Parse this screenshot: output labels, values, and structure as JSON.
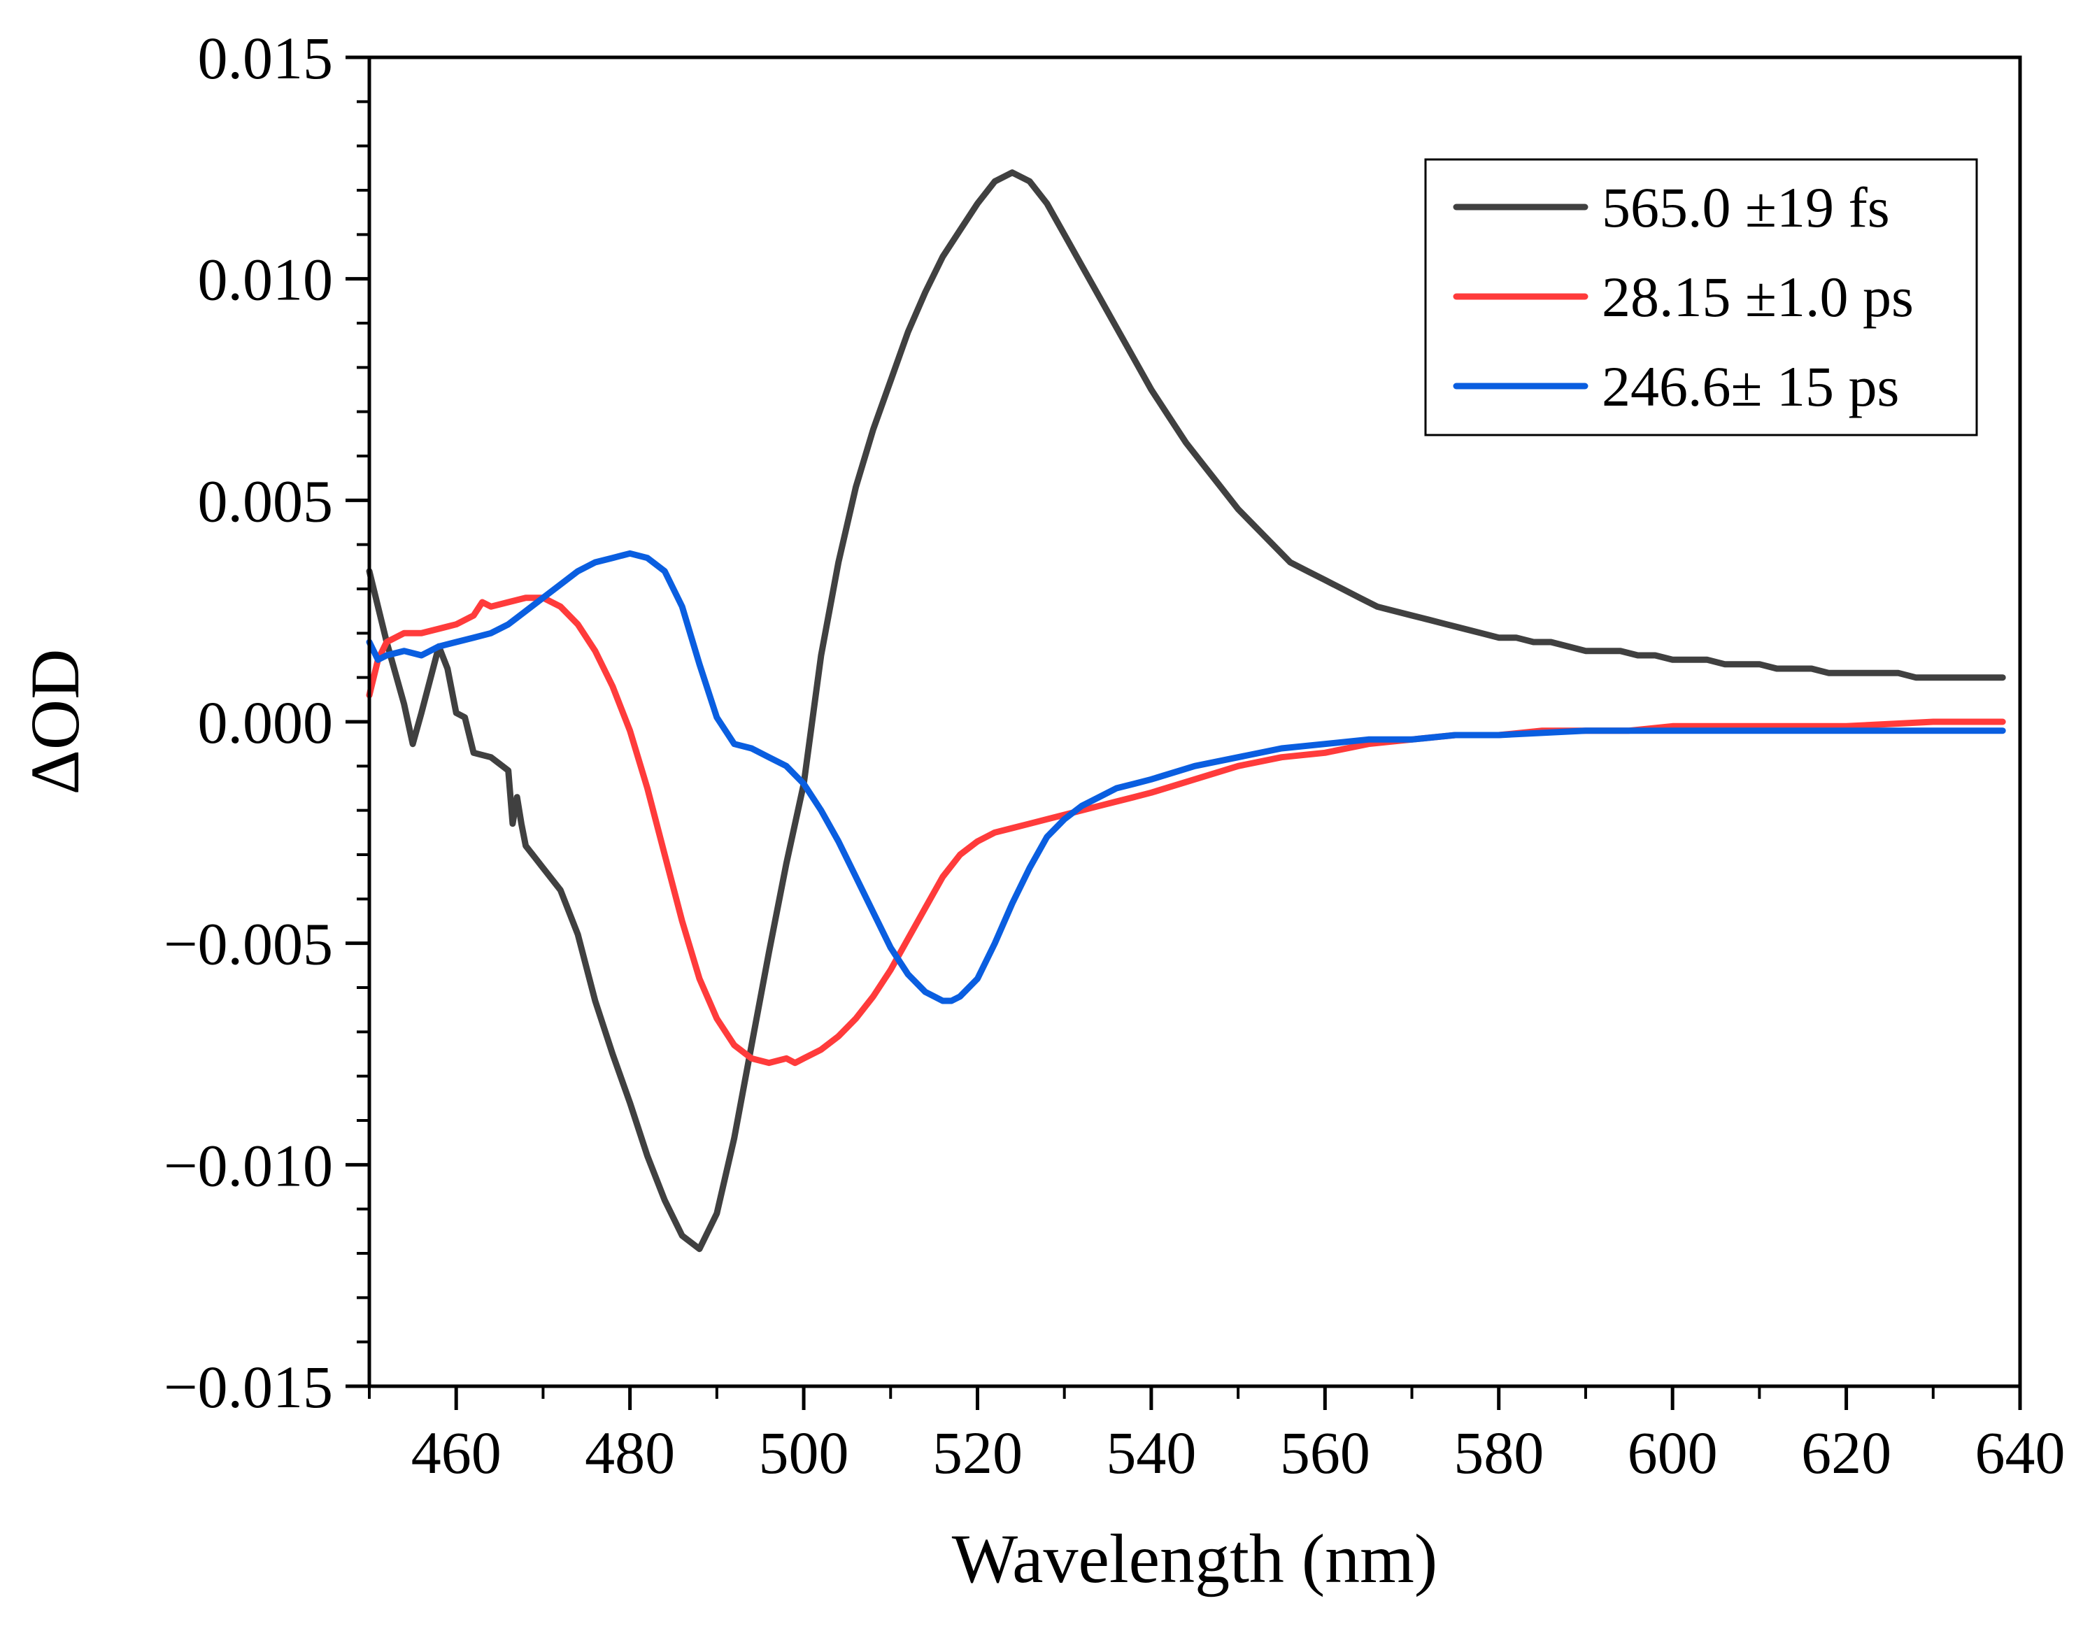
{
  "chart_data": {
    "type": "line",
    "xlabel": "Wavelength (nm)",
    "ylabel": "ΔOD",
    "xlim": [
      450,
      640
    ],
    "ylim": [
      -0.015,
      0.015
    ],
    "x_ticks": [
      460,
      480,
      500,
      520,
      540,
      560,
      580,
      600,
      620,
      640
    ],
    "x_tick_labels": [
      "460",
      "480",
      "500",
      "520",
      "540",
      "560",
      "580",
      "600",
      "620",
      "640"
    ],
    "y_ticks": [
      -0.015,
      -0.01,
      -0.005,
      0.0,
      0.005,
      0.01,
      0.015
    ],
    "y_tick_labels": [
      "−0.015",
      "−0.010",
      "−0.005",
      "0.000",
      "0.005",
      "0.010",
      "0.015"
    ],
    "grid": false,
    "legend_position": "top-right",
    "series": [
      {
        "name": "565.0 ±19 fs",
        "color": "#404040",
        "x": [
          450,
          452,
          454,
          455,
          456,
          458,
          459,
          460,
          461,
          462,
          464,
          466,
          466.5,
          467,
          467.5,
          468,
          470,
          472,
          474,
          476,
          478,
          480,
          482,
          484,
          486,
          488,
          490,
          492,
          494,
          496,
          498,
          500,
          502,
          504,
          506,
          508,
          510,
          512,
          514,
          516,
          518,
          520,
          522,
          524,
          526,
          528,
          530,
          532,
          534,
          536,
          538,
          540,
          542,
          544,
          546,
          548,
          550,
          552,
          554,
          556,
          558,
          560,
          562,
          564,
          566,
          568,
          570,
          572,
          574,
          576,
          578,
          580,
          582,
          584,
          586,
          588,
          590,
          592,
          594,
          596,
          598,
          600,
          602,
          604,
          606,
          608,
          610,
          612,
          614,
          616,
          618,
          620,
          622,
          624,
          626,
          628,
          630,
          632,
          634,
          636,
          638
        ],
        "y": [
          0.0034,
          0.0018,
          0.0004,
          -0.0005,
          0.0002,
          0.0017,
          0.0012,
          0.0002,
          0.0001,
          -0.0007,
          -0.0008,
          -0.0011,
          -0.0023,
          -0.0017,
          -0.0023,
          -0.0028,
          -0.0033,
          -0.0038,
          -0.0048,
          -0.0063,
          -0.0075,
          -0.0086,
          -0.0098,
          -0.0108,
          -0.0116,
          -0.0119,
          -0.0111,
          -0.0094,
          -0.0073,
          -0.0052,
          -0.0032,
          -0.0014,
          0.0015,
          0.0036,
          0.0053,
          0.0066,
          0.0077,
          0.0088,
          0.0097,
          0.0105,
          0.0111,
          0.0117,
          0.0122,
          0.0124,
          0.0122,
          0.0117,
          0.011,
          0.0103,
          0.0096,
          0.0089,
          0.0082,
          0.0075,
          0.0069,
          0.0063,
          0.0058,
          0.0053,
          0.0048,
          0.0044,
          0.004,
          0.0036,
          0.0034,
          0.0032,
          0.003,
          0.0028,
          0.0026,
          0.0025,
          0.0024,
          0.0023,
          0.0022,
          0.0021,
          0.002,
          0.0019,
          0.0019,
          0.0018,
          0.0018,
          0.0017,
          0.0016,
          0.0016,
          0.0016,
          0.0015,
          0.0015,
          0.0014,
          0.0014,
          0.0014,
          0.0013,
          0.0013,
          0.0013,
          0.0012,
          0.0012,
          0.0012,
          0.0011,
          0.0011,
          0.0011,
          0.0011,
          0.0011,
          0.001,
          0.001,
          0.001,
          0.001,
          0.001,
          0.001
        ]
      },
      {
        "name": "28.15 ±1.0 ps",
        "color": "#ff3b3b",
        "x": [
          450,
          451,
          452,
          454,
          456,
          458,
          460,
          462,
          463,
          464,
          466,
          468,
          470,
          472,
          474,
          476,
          478,
          480,
          482,
          484,
          486,
          488,
          490,
          492,
          494,
          496,
          498,
          499,
          500,
          502,
          504,
          506,
          508,
          510,
          512,
          514,
          516,
          518,
          520,
          522,
          524,
          526,
          528,
          530,
          532,
          534,
          536,
          538,
          540,
          545,
          550,
          555,
          560,
          565,
          570,
          575,
          580,
          585,
          590,
          595,
          600,
          610,
          620,
          630,
          638
        ],
        "y": [
          0.0006,
          0.0014,
          0.0018,
          0.002,
          0.002,
          0.0021,
          0.0022,
          0.0024,
          0.0027,
          0.0026,
          0.0027,
          0.0028,
          0.0028,
          0.0026,
          0.0022,
          0.0016,
          0.0008,
          -0.0002,
          -0.0015,
          -0.003,
          -0.0045,
          -0.0058,
          -0.0067,
          -0.0073,
          -0.0076,
          -0.0077,
          -0.0076,
          -0.0077,
          -0.0076,
          -0.0074,
          -0.0071,
          -0.0067,
          -0.0062,
          -0.0056,
          -0.0049,
          -0.0042,
          -0.0035,
          -0.003,
          -0.0027,
          -0.0025,
          -0.0024,
          -0.0023,
          -0.0022,
          -0.0021,
          -0.002,
          -0.0019,
          -0.0018,
          -0.0017,
          -0.0016,
          -0.0013,
          -0.001,
          -0.0008,
          -0.0007,
          -0.0005,
          -0.0004,
          -0.0003,
          -0.0003,
          -0.0002,
          -0.0002,
          -0.0002,
          -0.0001,
          -0.0001,
          -0.0001,
          0.0,
          0.0
        ]
      },
      {
        "name": "246.6± 15 ps",
        "color": "#0a5ee0",
        "x": [
          450,
          451,
          452,
          454,
          456,
          458,
          460,
          462,
          464,
          466,
          468,
          470,
          472,
          474,
          476,
          478,
          480,
          482,
          484,
          486,
          488,
          490,
          492,
          494,
          496,
          498,
          500,
          502,
          504,
          506,
          508,
          510,
          512,
          514,
          516,
          517,
          518,
          520,
          522,
          524,
          526,
          528,
          530,
          532,
          534,
          536,
          538,
          540,
          545,
          550,
          555,
          560,
          565,
          570,
          575,
          580,
          590,
          600,
          610,
          620,
          630,
          638
        ],
        "y": [
          0.0018,
          0.0014,
          0.0015,
          0.0016,
          0.0015,
          0.0017,
          0.0018,
          0.0019,
          0.002,
          0.0022,
          0.0025,
          0.0028,
          0.0031,
          0.0034,
          0.0036,
          0.0037,
          0.0038,
          0.0037,
          0.0034,
          0.0026,
          0.0013,
          0.0001,
          -0.0005,
          -0.0006,
          -0.0008,
          -0.001,
          -0.0014,
          -0.002,
          -0.0027,
          -0.0035,
          -0.0043,
          -0.0051,
          -0.0057,
          -0.0061,
          -0.0063,
          -0.0063,
          -0.0062,
          -0.0058,
          -0.005,
          -0.0041,
          -0.0033,
          -0.0026,
          -0.0022,
          -0.0019,
          -0.0017,
          -0.0015,
          -0.0014,
          -0.0013,
          -0.001,
          -0.0008,
          -0.0006,
          -0.0005,
          -0.0004,
          -0.0004,
          -0.0003,
          -0.0003,
          -0.0002,
          -0.0002,
          -0.0002,
          -0.0002,
          -0.0002,
          -0.0002
        ]
      }
    ]
  }
}
